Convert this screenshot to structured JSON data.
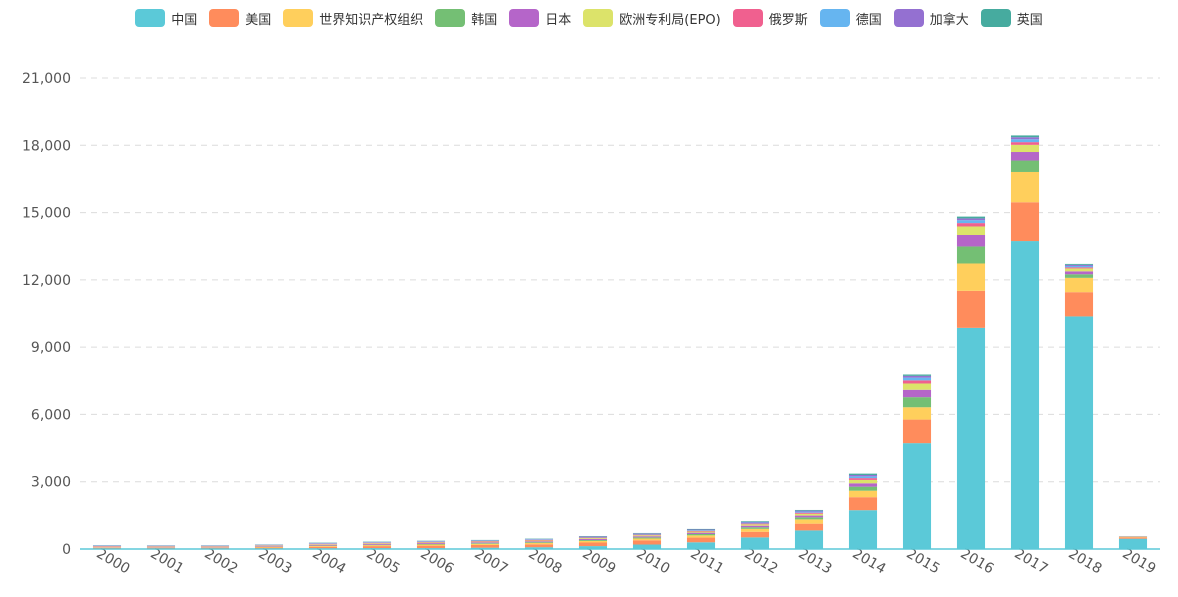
{
  "chart_data": {
    "type": "bar",
    "stacked": true,
    "categories": [
      "2000",
      "2001",
      "2002",
      "2003",
      "2004",
      "2005",
      "2006",
      "2007",
      "2008",
      "2009",
      "2010",
      "2011",
      "2012",
      "2013",
      "2014",
      "2015",
      "2016",
      "2017",
      "2018",
      "2019"
    ],
    "ylim": [
      0,
      21000
    ],
    "yticks": [
      "0",
      "3,000",
      "6,000",
      "9,000",
      "12,000",
      "15,000",
      "18,000",
      "21,000"
    ],
    "ytick_values": [
      0,
      3000,
      6000,
      9000,
      12000,
      15000,
      18000,
      21000
    ],
    "grid": true,
    "legend_position": "top-center",
    "series": [
      {
        "name": "中国",
        "color": "#5bc9d8",
        "values": [
          15,
          10,
          10,
          15,
          30,
          40,
          40,
          60,
          80,
          130,
          200,
          300,
          520,
          830,
          1730,
          4720,
          9860,
          13730,
          10370,
          460
        ]
      },
      {
        "name": "美国",
        "color": "#ff8c5c",
        "values": [
          40,
          40,
          40,
          50,
          70,
          90,
          110,
          120,
          130,
          160,
          190,
          210,
          250,
          300,
          580,
          1050,
          1650,
          1730,
          1080,
          60
        ]
      },
      {
        "name": "世界知识产权组织",
        "color": "#ffcf5c",
        "values": [
          20,
          20,
          20,
          30,
          40,
          40,
          50,
          50,
          60,
          70,
          80,
          100,
          130,
          190,
          290,
          550,
          1220,
          1350,
          640,
          30
        ]
      },
      {
        "name": "韩国",
        "color": "#74bf74",
        "values": [
          5,
          5,
          5,
          10,
          15,
          20,
          25,
          30,
          35,
          40,
          50,
          60,
          70,
          90,
          180,
          450,
          760,
          510,
          160,
          0
        ]
      },
      {
        "name": "日本",
        "color": "#b565c9",
        "values": [
          20,
          20,
          20,
          25,
          30,
          35,
          40,
          40,
          40,
          45,
          50,
          60,
          70,
          80,
          150,
          330,
          510,
          380,
          130,
          5
        ]
      },
      {
        "name": "欧洲专利局(EPO)",
        "color": "#dce36a",
        "values": [
          15,
          15,
          15,
          20,
          25,
          30,
          30,
          30,
          35,
          40,
          45,
          50,
          60,
          80,
          150,
          280,
          380,
          320,
          130,
          5
        ]
      },
      {
        "name": "俄罗斯",
        "color": "#f0608f",
        "values": [
          20,
          20,
          20,
          20,
          25,
          25,
          25,
          25,
          30,
          30,
          30,
          35,
          40,
          50,
          80,
          140,
          150,
          120,
          50,
          5
        ]
      },
      {
        "name": "德国",
        "color": "#66b5f0",
        "values": [
          15,
          15,
          15,
          15,
          20,
          20,
          20,
          20,
          25,
          25,
          30,
          30,
          40,
          50,
          80,
          120,
          130,
          130,
          60,
          5
        ]
      },
      {
        "name": "加拿大",
        "color": "#9470d1",
        "values": [
          10,
          10,
          10,
          10,
          15,
          15,
          15,
          15,
          15,
          20,
          20,
          25,
          30,
          40,
          60,
          80,
          80,
          90,
          50,
          5
        ]
      },
      {
        "name": "英国",
        "color": "#46ab9f",
        "values": [
          10,
          10,
          10,
          10,
          15,
          15,
          15,
          15,
          15,
          20,
          20,
          25,
          30,
          30,
          60,
          60,
          80,
          80,
          40,
          5
        ]
      }
    ]
  }
}
